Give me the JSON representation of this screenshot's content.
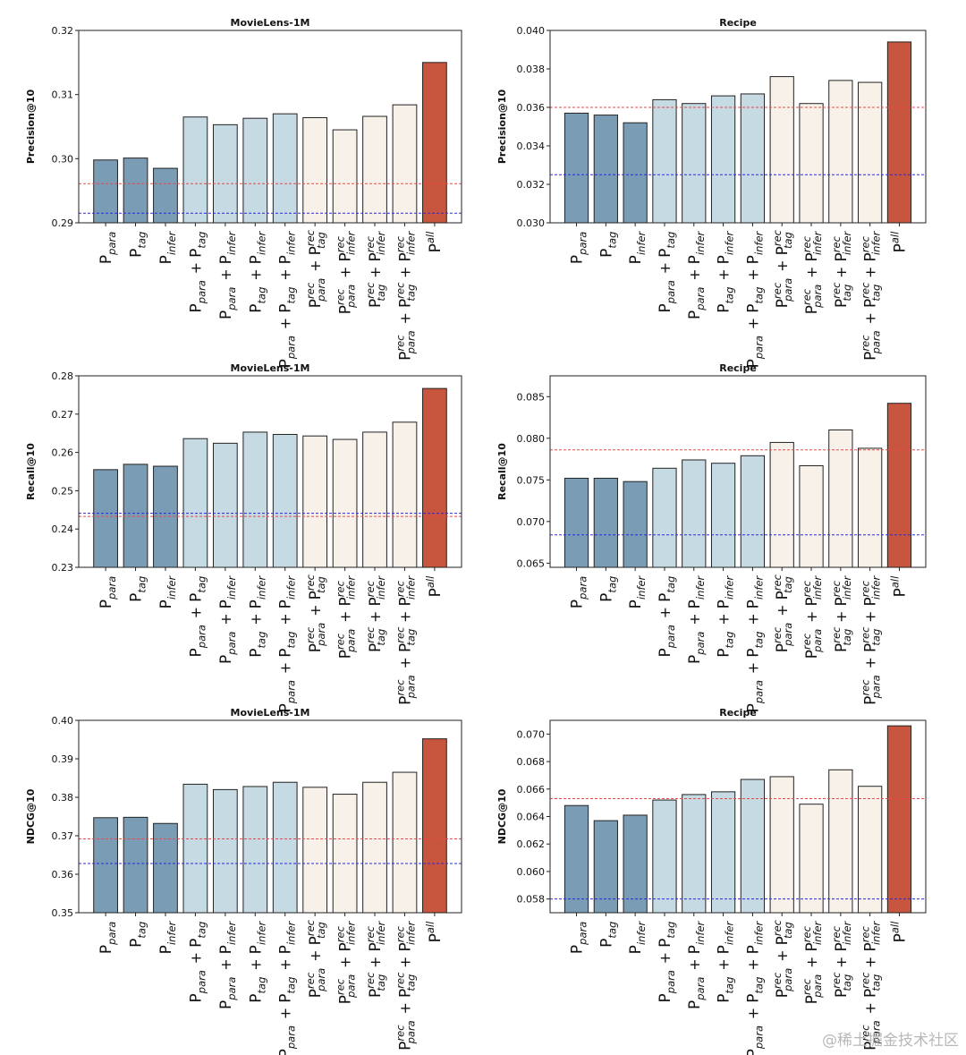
{
  "colors": {
    "dark_blue": "#7a9db5",
    "light_blue": "#c6dae4",
    "cream": "#f8f1ea",
    "red": "#c8553d",
    "ref_red": "#e84a4a",
    "ref_blue": "#2a2ae0"
  },
  "categories": [
    {
      "base": "P",
      "sub": "para"
    },
    {
      "base": "P",
      "sub": "tag"
    },
    {
      "base": "P",
      "sub": "infer"
    },
    {
      "terms": [
        {
          "base": "P",
          "sub": "para"
        },
        {
          "base": "P",
          "sub": "tag"
        }
      ]
    },
    {
      "terms": [
        {
          "base": "P",
          "sub": "para"
        },
        {
          "base": "P",
          "sub": "infer"
        }
      ]
    },
    {
      "terms": [
        {
          "base": "P",
          "sub": "tag"
        },
        {
          "base": "P",
          "sub": "infer"
        }
      ]
    },
    {
      "terms": [
        {
          "base": "P",
          "sub": "para"
        },
        {
          "base": "P",
          "sub": "tag"
        },
        {
          "base": "P",
          "sub": "infer"
        }
      ]
    },
    {
      "terms": [
        {
          "base": "P",
          "sup": "rec",
          "sub": "para"
        },
        {
          "base": "P",
          "sup": "rec",
          "sub": "tag"
        }
      ]
    },
    {
      "terms": [
        {
          "base": "P",
          "sup": "rec",
          "sub": "para"
        },
        {
          "base": "P",
          "sup": "rec",
          "sub": "infer"
        }
      ]
    },
    {
      "terms": [
        {
          "base": "P",
          "sup": "rec",
          "sub": "tag"
        },
        {
          "base": "P",
          "sup": "rec",
          "sub": "infer"
        }
      ]
    },
    {
      "terms": [
        {
          "base": "P",
          "sup": "rec",
          "sub": "para"
        },
        {
          "base": "P",
          "sup": "rec",
          "sub": "tag"
        },
        {
          "base": "P",
          "sup": "rec",
          "sub": "infer"
        }
      ]
    },
    {
      "base": "P",
      "sup": "all"
    }
  ],
  "bar_colors": [
    "dark_blue",
    "dark_blue",
    "dark_blue",
    "light_blue",
    "light_blue",
    "light_blue",
    "light_blue",
    "cream",
    "cream",
    "cream",
    "cream",
    "red"
  ],
  "chart_data": [
    {
      "type": "bar",
      "title": "MovieLens-1M",
      "ylabel": "Precision@10",
      "ylim": [
        0.29,
        0.32
      ],
      "yticks": [
        "0.29",
        "0.30",
        "0.31",
        "0.32"
      ],
      "values": [
        0.2998,
        0.3001,
        0.2985,
        0.3065,
        0.3053,
        0.3063,
        0.307,
        0.3064,
        0.3045,
        0.3066,
        0.3084,
        0.315
      ],
      "ref_red": 0.2961,
      "ref_blue": 0.2915
    },
    {
      "type": "bar",
      "title": "Recipe",
      "ylabel": "Precision@10",
      "ylim": [
        0.03,
        0.04
      ],
      "yticks": [
        "0.030",
        "0.032",
        "0.034",
        "0.036",
        "0.038",
        "0.040"
      ],
      "values": [
        0.0357,
        0.0356,
        0.0352,
        0.0364,
        0.0362,
        0.0366,
        0.0367,
        0.0376,
        0.0362,
        0.0374,
        0.0373,
        0.0394
      ],
      "ref_red": 0.036,
      "ref_blue": 0.0325
    },
    {
      "type": "bar",
      "title": "MovieLens-1M",
      "ylabel": "Recall@10",
      "ylim": [
        0.23,
        0.28
      ],
      "yticks": [
        "0.23",
        "0.24",
        "0.25",
        "0.26",
        "0.27",
        "0.28"
      ],
      "values": [
        0.2555,
        0.2569,
        0.2564,
        0.2636,
        0.2624,
        0.2653,
        0.2647,
        0.2643,
        0.2634,
        0.2653,
        0.2679,
        0.2767
      ],
      "ref_red": 0.2433,
      "ref_blue": 0.2441
    },
    {
      "type": "bar",
      "title": "Recipe",
      "ylabel": "Recall@10",
      "ylim": [
        0.0645,
        0.0875
      ],
      "yticks": [
        "0.065",
        "0.070",
        "0.075",
        "0.080",
        "0.085"
      ],
      "values": [
        0.0752,
        0.0752,
        0.0748,
        0.0764,
        0.0774,
        0.077,
        0.0779,
        0.0795,
        0.0767,
        0.081,
        0.0788,
        0.0842
      ],
      "ref_red": 0.0786,
      "ref_blue": 0.0684
    },
    {
      "type": "bar",
      "title": "MovieLens-1M",
      "ylabel": "NDCG@10",
      "ylim": [
        0.35,
        0.4
      ],
      "yticks": [
        "0.35",
        "0.36",
        "0.37",
        "0.38",
        "0.39",
        "0.40"
      ],
      "values": [
        0.3747,
        0.3748,
        0.3732,
        0.3834,
        0.382,
        0.3828,
        0.3839,
        0.3826,
        0.3808,
        0.3839,
        0.3865,
        0.3952
      ],
      "ref_red": 0.3692,
      "ref_blue": 0.3628
    },
    {
      "type": "bar",
      "title": "Recipe",
      "ylabel": "NDCG@10",
      "ylim": [
        0.057,
        0.071
      ],
      "yticks": [
        "0.058",
        "0.060",
        "0.062",
        "0.064",
        "0.066",
        "0.068",
        "0.070"
      ],
      "values": [
        0.0648,
        0.0637,
        0.0641,
        0.0652,
        0.0656,
        0.0658,
        0.0667,
        0.0669,
        0.0649,
        0.0674,
        0.0662,
        0.0706
      ],
      "ref_red": 0.0653,
      "ref_blue": 0.058
    }
  ],
  "watermark": "@稀土掘金技术社区"
}
